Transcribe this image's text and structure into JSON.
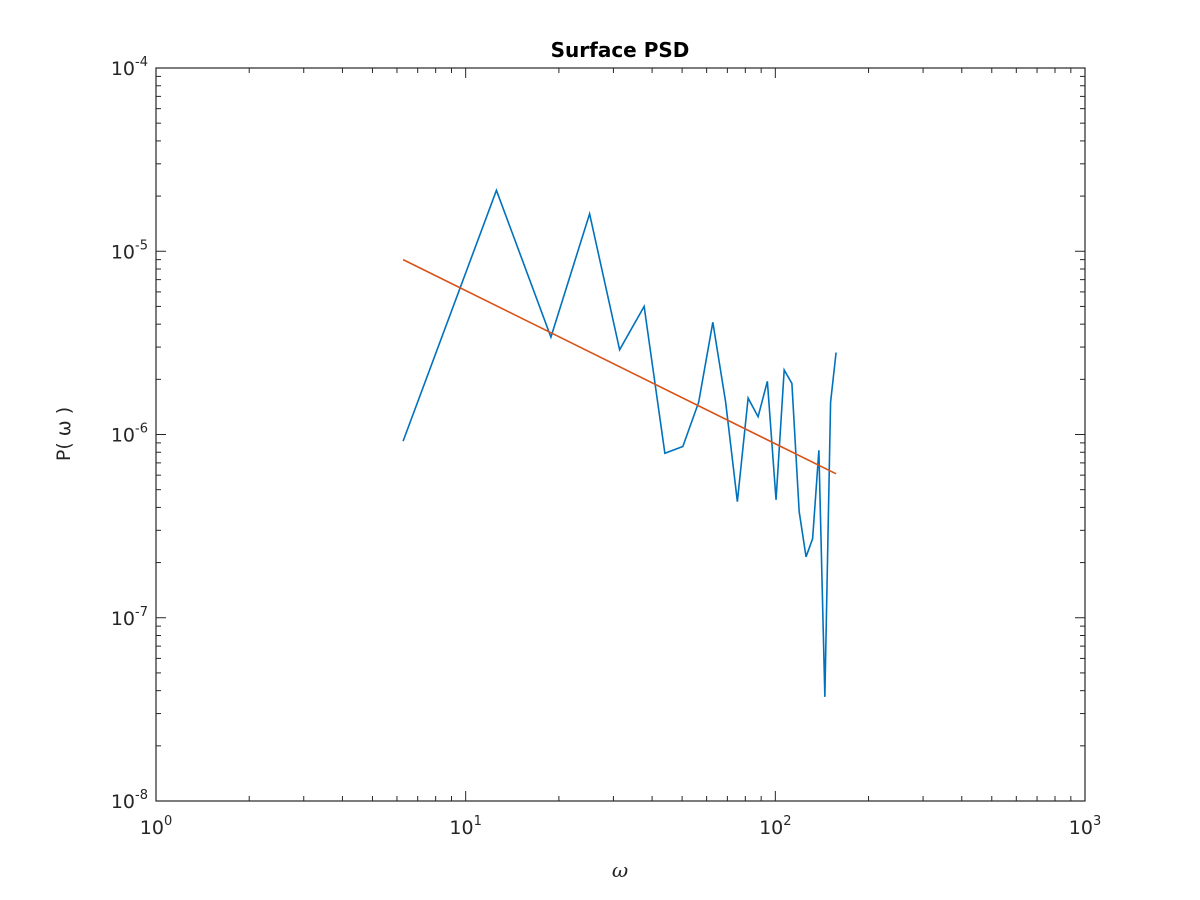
{
  "chart_data": {
    "type": "line",
    "title": "Surface PSD",
    "xlabel": "ω",
    "ylabel": "P( ω )",
    "x_scale": "log",
    "y_scale": "log",
    "xlim": [
      1,
      1000
    ],
    "ylim": [
      1e-08,
      0.0001
    ],
    "x_ticks": [
      {
        "base": "10",
        "exp": "0",
        "value": 1
      },
      {
        "base": "10",
        "exp": "1",
        "value": 10
      },
      {
        "base": "10",
        "exp": "2",
        "value": 100
      },
      {
        "base": "10",
        "exp": "3",
        "value": 1000
      }
    ],
    "y_ticks": [
      {
        "base": "10",
        "exp": "-8",
        "value": 1e-08
      },
      {
        "base": "10",
        "exp": "-7",
        "value": 1e-07
      },
      {
        "base": "10",
        "exp": "-6",
        "value": 1e-06
      },
      {
        "base": "10",
        "exp": "-5",
        "value": 1e-05
      },
      {
        "base": "10",
        "exp": "-4",
        "value": 0.0001
      }
    ],
    "grid": false,
    "box": true,
    "series": [
      {
        "color": "#0072BD",
        "x": [
          6.28,
          12.57,
          18.85,
          25.13,
          31.42,
          37.7,
          43.98,
          50.27,
          56.55,
          62.83,
          69.12,
          75.4,
          81.68,
          87.96,
          94.25,
          100.53,
          106.81,
          113.1,
          119.38,
          125.66,
          131.95,
          138.23,
          144.51,
          150.8,
          157.08
        ],
        "y": [
          9.2e-07,
          2.15e-05,
          3.4e-06,
          1.6e-05,
          2.9e-06,
          5e-06,
          7.9e-07,
          8.6e-07,
          1.5e-06,
          4.1e-06,
          1.5e-06,
          4.3e-07,
          1.58e-06,
          1.25e-06,
          1.95e-06,
          4.4e-07,
          2.25e-06,
          1.9e-06,
          3.8e-07,
          2.15e-07,
          2.7e-07,
          8.2e-07,
          3.7e-08,
          1.5e-06,
          2.8e-06
        ]
      },
      {
        "color": "#D95319",
        "x": [
          6.28,
          157.08
        ],
        "y": [
          9e-06,
          6.1e-07
        ]
      }
    ]
  }
}
